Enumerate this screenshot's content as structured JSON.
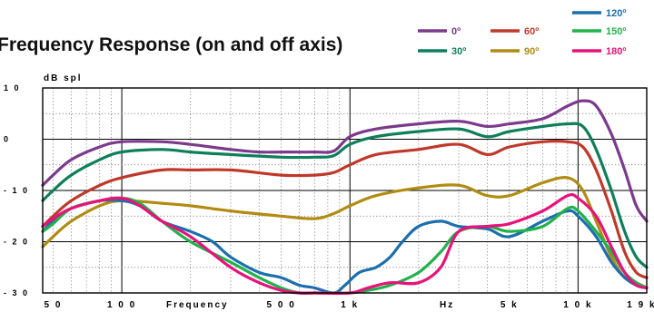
{
  "chart_data": {
    "type": "line",
    "title": "Frequency Response (on and off axis)",
    "ylabel": "dB spl",
    "xlabel_parts": [
      "Frequency",
      "Hz"
    ],
    "xscale": "log",
    "xlim": [
      45,
      20000
    ],
    "ylim": [
      -30,
      10
    ],
    "yticks": [
      {
        "value": 10,
        "label": "1 0"
      },
      {
        "value": 0,
        "label": "0"
      },
      {
        "value": -10,
        "label": "- 1 0"
      },
      {
        "value": -20,
        "label": "- 2 0"
      },
      {
        "value": -30,
        "label": "- 3 0"
      }
    ],
    "xticks": [
      {
        "value": 50,
        "label": "5 0"
      },
      {
        "value": 100,
        "label": "1 0 0"
      },
      {
        "value": 500,
        "label": "5 0 0"
      },
      {
        "value": 1000,
        "label": "1 k"
      },
      {
        "value": 5000,
        "label": "5 k"
      },
      {
        "value": 10000,
        "label": "1 0 k"
      },
      {
        "value": 19000,
        "label": "1 9 k"
      }
    ],
    "grid": true,
    "legend_position": "top-right",
    "series": [
      {
        "name": "0º",
        "color": "#7b3a8c",
        "points": [
          [
            45,
            -9
          ],
          [
            50,
            -7
          ],
          [
            60,
            -4
          ],
          [
            80,
            -1.5
          ],
          [
            100,
            -0.5
          ],
          [
            150,
            -0.5
          ],
          [
            200,
            -1
          ],
          [
            300,
            -2
          ],
          [
            400,
            -2.5
          ],
          [
            500,
            -2.5
          ],
          [
            700,
            -2.5
          ],
          [
            850,
            -2.3
          ],
          [
            1000,
            0.5
          ],
          [
            1300,
            2
          ],
          [
            2000,
            3
          ],
          [
            3000,
            3.5
          ],
          [
            4000,
            2.5
          ],
          [
            5000,
            3
          ],
          [
            7000,
            4
          ],
          [
            9000,
            6.5
          ],
          [
            10500,
            7.5
          ],
          [
            12000,
            6.5
          ],
          [
            14000,
            1
          ],
          [
            16000,
            -6
          ],
          [
            18000,
            -13
          ],
          [
            20000,
            -16
          ]
        ]
      },
      {
        "name": "30º",
        "color": "#0e7f5a",
        "points": [
          [
            45,
            -12
          ],
          [
            50,
            -10
          ],
          [
            60,
            -7
          ],
          [
            80,
            -4
          ],
          [
            100,
            -2.5
          ],
          [
            150,
            -2
          ],
          [
            200,
            -2.5
          ],
          [
            300,
            -3
          ],
          [
            500,
            -3.5
          ],
          [
            700,
            -3.5
          ],
          [
            850,
            -3.2
          ],
          [
            1000,
            -1
          ],
          [
            1300,
            0.5
          ],
          [
            2000,
            1.5
          ],
          [
            3000,
            2
          ],
          [
            4000,
            0.5
          ],
          [
            5000,
            1.5
          ],
          [
            7000,
            2.5
          ],
          [
            9000,
            3
          ],
          [
            10500,
            2.5
          ],
          [
            12000,
            -2
          ],
          [
            14000,
            -10
          ],
          [
            16000,
            -18
          ],
          [
            18000,
            -23
          ],
          [
            20000,
            -25
          ]
        ]
      },
      {
        "name": "60º",
        "color": "#c0382a",
        "points": [
          [
            45,
            -17
          ],
          [
            50,
            -15
          ],
          [
            60,
            -12
          ],
          [
            80,
            -9
          ],
          [
            100,
            -7.5
          ],
          [
            150,
            -6
          ],
          [
            200,
            -6
          ],
          [
            300,
            -6
          ],
          [
            500,
            -7
          ],
          [
            700,
            -7
          ],
          [
            850,
            -6.5
          ],
          [
            1000,
            -5
          ],
          [
            1300,
            -3
          ],
          [
            2000,
            -2
          ],
          [
            3000,
            -1
          ],
          [
            4000,
            -3
          ],
          [
            5000,
            -1.5
          ],
          [
            7000,
            -0.5
          ],
          [
            9000,
            -0.5
          ],
          [
            10500,
            -1.5
          ],
          [
            12000,
            -6
          ],
          [
            14000,
            -14
          ],
          [
            16000,
            -22
          ],
          [
            18000,
            -26
          ],
          [
            20000,
            -27
          ]
        ]
      },
      {
        "name": "90º",
        "color": "#b08c12",
        "points": [
          [
            45,
            -21
          ],
          [
            50,
            -19
          ],
          [
            60,
            -16
          ],
          [
            80,
            -13
          ],
          [
            100,
            -12
          ],
          [
            150,
            -12.5
          ],
          [
            200,
            -13
          ],
          [
            300,
            -14
          ],
          [
            500,
            -15
          ],
          [
            700,
            -15.5
          ],
          [
            850,
            -14.5
          ],
          [
            1000,
            -13
          ],
          [
            1300,
            -11
          ],
          [
            2000,
            -9.5
          ],
          [
            3000,
            -9
          ],
          [
            4000,
            -11
          ],
          [
            5000,
            -11
          ],
          [
            7000,
            -8.5
          ],
          [
            9000,
            -7.5
          ],
          [
            10500,
            -10
          ],
          [
            12000,
            -16
          ],
          [
            14000,
            -23
          ],
          [
            16000,
            -27
          ],
          [
            18000,
            -28
          ],
          [
            20000,
            -29
          ]
        ]
      },
      {
        "name": "120º",
        "color": "#1b6fae",
        "points": [
          [
            45,
            -18
          ],
          [
            50,
            -16
          ],
          [
            60,
            -13.5
          ],
          [
            80,
            -12
          ],
          [
            100,
            -12
          ],
          [
            120,
            -13
          ],
          [
            150,
            -16
          ],
          [
            200,
            -18
          ],
          [
            250,
            -20
          ],
          [
            300,
            -23
          ],
          [
            400,
            -26
          ],
          [
            500,
            -27
          ],
          [
            600,
            -28.5
          ],
          [
            700,
            -29
          ],
          [
            850,
            -30
          ],
          [
            950,
            -28.5
          ],
          [
            1100,
            -26
          ],
          [
            1300,
            -25
          ],
          [
            1500,
            -23
          ],
          [
            1700,
            -20
          ],
          [
            2000,
            -17
          ],
          [
            2500,
            -16
          ],
          [
            3000,
            -17
          ],
          [
            4000,
            -17.5
          ],
          [
            5000,
            -19
          ],
          [
            7000,
            -16
          ],
          [
            9000,
            -14
          ],
          [
            10000,
            -15
          ],
          [
            12000,
            -19
          ],
          [
            14000,
            -24
          ],
          [
            16000,
            -27
          ],
          [
            18000,
            -28.5
          ],
          [
            20000,
            -29
          ]
        ]
      },
      {
        "name": "150º",
        "color": "#21b24c",
        "points": [
          [
            45,
            -18
          ],
          [
            50,
            -16.5
          ],
          [
            60,
            -13.5
          ],
          [
            80,
            -12
          ],
          [
            100,
            -11.5
          ],
          [
            120,
            -12.5
          ],
          [
            150,
            -16
          ],
          [
            200,
            -20
          ],
          [
            300,
            -24
          ],
          [
            400,
            -27
          ],
          [
            500,
            -29
          ],
          [
            600,
            -30
          ],
          [
            700,
            -30
          ],
          [
            1000,
            -30
          ],
          [
            1200,
            -29.5
          ],
          [
            1500,
            -28.5
          ],
          [
            2000,
            -26
          ],
          [
            2500,
            -22
          ],
          [
            3000,
            -18
          ],
          [
            4000,
            -17
          ],
          [
            5000,
            -18
          ],
          [
            7000,
            -17
          ],
          [
            9000,
            -13.5
          ],
          [
            10000,
            -14
          ],
          [
            12000,
            -18
          ],
          [
            14000,
            -22
          ],
          [
            16000,
            -26
          ],
          [
            18000,
            -28
          ],
          [
            20000,
            -29
          ]
        ]
      },
      {
        "name": "180º",
        "color": "#e8127a",
        "points": [
          [
            45,
            -17
          ],
          [
            50,
            -15.5
          ],
          [
            60,
            -13.5
          ],
          [
            80,
            -12
          ],
          [
            100,
            -11.5
          ],
          [
            120,
            -13
          ],
          [
            150,
            -16
          ],
          [
            200,
            -19
          ],
          [
            300,
            -25
          ],
          [
            400,
            -28
          ],
          [
            500,
            -29.5
          ],
          [
            600,
            -30
          ],
          [
            700,
            -30
          ],
          [
            1000,
            -30
          ],
          [
            1200,
            -29
          ],
          [
            1500,
            -28
          ],
          [
            2000,
            -28
          ],
          [
            2500,
            -25
          ],
          [
            3000,
            -18
          ],
          [
            4000,
            -17
          ],
          [
            5000,
            -16.5
          ],
          [
            7000,
            -14
          ],
          [
            9000,
            -11
          ],
          [
            10000,
            -11.5
          ],
          [
            12000,
            -15
          ],
          [
            14000,
            -21
          ],
          [
            16000,
            -26
          ],
          [
            18000,
            -28.5
          ],
          [
            20000,
            -29
          ]
        ]
      }
    ]
  }
}
